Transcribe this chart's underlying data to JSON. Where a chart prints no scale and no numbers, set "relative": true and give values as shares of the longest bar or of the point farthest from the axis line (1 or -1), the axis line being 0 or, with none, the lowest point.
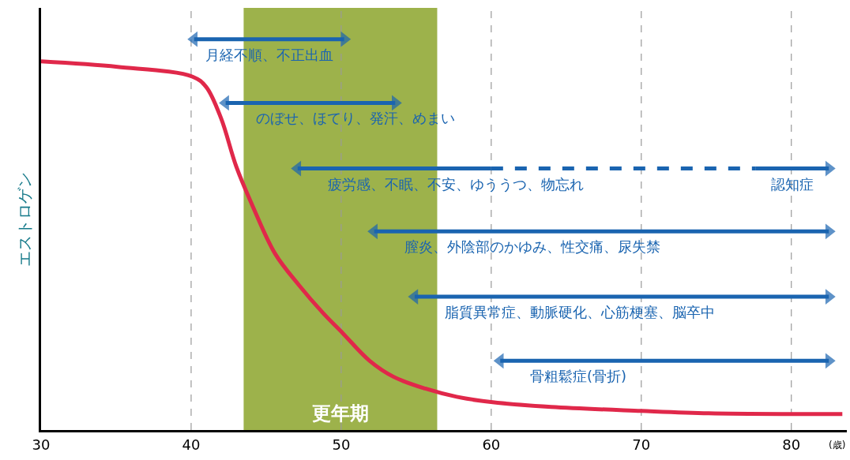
{
  "chart_data": {
    "type": "line",
    "relative": true,
    "ylabel": "エストロゲン",
    "xlabel": "(歳)",
    "xlim": [
      30,
      83.7
    ],
    "xticks": [
      30,
      40,
      50,
      60,
      70,
      80
    ],
    "grid": "x",
    "legend": false,
    "bands": [
      {
        "axis": "x",
        "from": 43.5,
        "to": 56.4,
        "label": "更年期",
        "color": "#8ca42c"
      }
    ],
    "series": [
      {
        "color": "#e0284a",
        "x": [
          30,
          35.1,
          40.1,
          41.0,
          42.0,
          43.0,
          44.1,
          45.6,
          47.2,
          48.8,
          50.1,
          51.9,
          53.5,
          55.6,
          57.7,
          60.1,
          64.0,
          70.0,
          74.5,
          80.0,
          83.4
        ],
        "values": [
          0.943,
          0.929,
          0.904,
          0.878,
          0.797,
          0.675,
          0.573,
          0.451,
          0.37,
          0.299,
          0.248,
          0.177,
          0.136,
          0.106,
          0.085,
          0.071,
          0.059,
          0.049,
          0.043,
          0.041,
          0.041
        ],
        "marker": "none",
        "line_style": "solid"
      },
      {
        "name": "月経不順、不正出血",
        "color": "#1a64b0",
        "x": [
          40.2,
          50.2
        ],
        "values": [
          1.0,
          1.0
        ],
        "marker": [
          "triangle",
          "triangle"
        ],
        "line_style": "solid"
      },
      {
        "name": "のぼせ、ほてり、発汗、めまい",
        "color": "#1a64b0",
        "x": [
          42.3,
          53.6
        ],
        "values": [
          0.837,
          0.837
        ],
        "marker": [
          "triangle",
          "triangle"
        ],
        "line_style": "solid"
      },
      {
        "name": "疲労感、不眠、不安、ゆううつ、物忘れ",
        "color": "#1a64b0",
        "x": [
          47.1,
          60.0
        ],
        "values": [
          0.669,
          0.669
        ],
        "marker": [
          "triangle",
          "none"
        ],
        "line_style": "solid"
      },
      {
        "color": "#1a64b0",
        "x": [
          60.0,
          77.6
        ],
        "values": [
          0.669,
          0.669
        ],
        "marker": [
          "none",
          "none"
        ],
        "line_style": "dashed"
      },
      {
        "name": "認知症",
        "color": "#1a64b0",
        "x": [
          77.6,
          82.5
        ],
        "values": [
          0.669,
          0.669
        ],
        "marker": [
          "none",
          "triangle"
        ],
        "line_style": "solid"
      },
      {
        "name": "膣炎、外陰部のかゆみ、性交痛、尿失禁",
        "color": "#1a64b0",
        "x": [
          52.2,
          82.5
        ],
        "values": [
          0.508,
          0.508
        ],
        "marker": [
          "triangle",
          "triangle"
        ],
        "line_style": "solid"
      },
      {
        "name": "脂質異常症、動脈硬化、心筋梗塞、脳卒中",
        "color": "#1a64b0",
        "x": [
          54.9,
          82.5
        ],
        "values": [
          0.341,
          0.341
        ],
        "marker": [
          "triangle",
          "triangle"
        ],
        "line_style": "solid"
      },
      {
        "name": "骨粗鬆症(骨折)",
        "color": "#1a64b0",
        "x": [
          60.6,
          82.5
        ],
        "values": [
          0.177,
          0.177
        ],
        "marker": [
          "triangle",
          "triangle"
        ],
        "line_style": "solid"
      }
    ]
  }
}
